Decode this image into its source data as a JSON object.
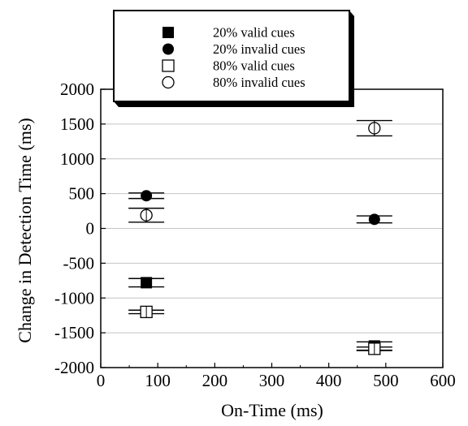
{
  "chart_data": {
    "type": "scatter",
    "xlabel": "On-Time (ms)",
    "ylabel": "Change in Detection Time (ms)",
    "xlim": [
      0,
      600
    ],
    "ylim": [
      -2000,
      2000
    ],
    "x_ticks": [
      "0",
      "100",
      "200",
      "300",
      "400",
      "500",
      "600"
    ],
    "y_ticks": [
      "2000",
      "1500",
      "1000",
      "500",
      "0",
      "-500",
      "-1000",
      "-1500",
      "-2000"
    ],
    "grid": "horizontal",
    "legend_position": "top-left",
    "series": [
      {
        "name": "20% valid cues",
        "marker": "filled-square",
        "points": [
          {
            "x": 80,
            "y": -780,
            "err": 60
          },
          {
            "x": 480,
            "y": -1690,
            "err": 60
          }
        ]
      },
      {
        "name": "20% invalid cues",
        "marker": "filled-circle",
        "points": [
          {
            "x": 80,
            "y": 470,
            "err": 40
          },
          {
            "x": 480,
            "y": 130,
            "err": 50
          }
        ]
      },
      {
        "name": "80% valid cues",
        "marker": "open-square",
        "points": [
          {
            "x": 80,
            "y": -1200,
            "err": 25
          },
          {
            "x": 480,
            "y": -1730,
            "err": 25
          }
        ]
      },
      {
        "name": "80% invalid cues",
        "marker": "open-circle",
        "points": [
          {
            "x": 80,
            "y": 190,
            "err": 100
          },
          {
            "x": 480,
            "y": 1440,
            "err": 110
          }
        ]
      }
    ]
  }
}
